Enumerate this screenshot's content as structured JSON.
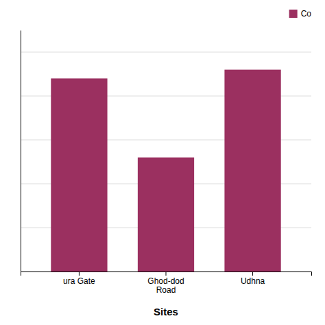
{
  "chart_data": {
    "type": "bar",
    "xlabel": "Sites",
    "categories": [
      "ura Gate",
      "Ghod-dod\nRoad",
      "Udhna"
    ],
    "series": [
      {
        "name": "Co",
        "color": "#9B3060",
        "values": [
          88,
          52,
          92
        ]
      }
    ],
    "ylim": [
      0,
      110
    ],
    "yticks": [
      0,
      20,
      40,
      60,
      80,
      100
    ],
    "grid": true,
    "legend": "upper right",
    "tick_labels": "x"
  }
}
